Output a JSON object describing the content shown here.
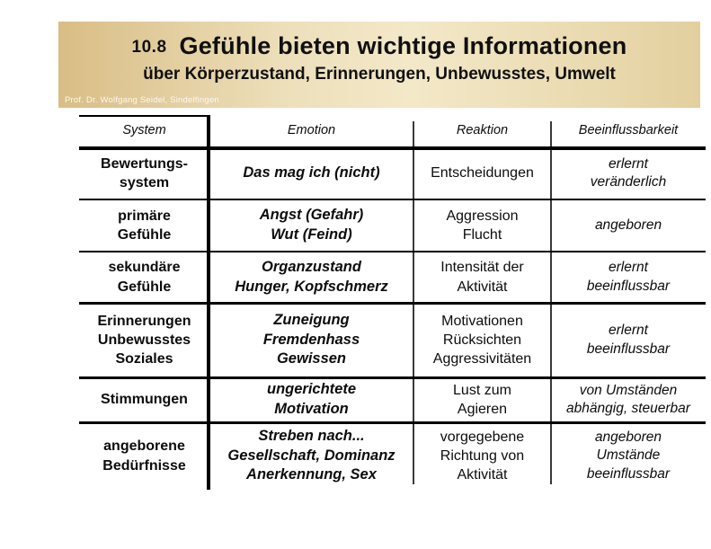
{
  "slide": {
    "number": "10.8",
    "title": "Gefühle bieten wichtige Informationen",
    "subtitle": "über Körperzustand, Erinnerungen, Unbewusstes, Umwelt",
    "credit": "Prof. Dr. Wolfgang Seidel, Sindelfingen"
  },
  "colors": {
    "banner_gold_dark": "#d9bd85",
    "banner_gold_light": "#f3e8c8",
    "text": "#0c0c0c",
    "credit_text": "#fbf9f2",
    "rule": "#000000"
  },
  "table": {
    "columns": [
      {
        "label": "System"
      },
      {
        "label": "Emotion"
      },
      {
        "label": "Reaktion"
      },
      {
        "label": "Beeinflussbarkeit"
      }
    ],
    "rows": [
      {
        "system": "Bewertungs-\nsystem",
        "emotion": "Das mag ich (nicht)",
        "reaktion": "Entscheidungen",
        "beeinflussbarkeit": "erlernt\nveränderlich"
      },
      {
        "system": "primäre\nGefühle",
        "emotion": "Angst (Gefahr)\nWut (Feind)",
        "reaktion": "Aggression\nFlucht",
        "beeinflussbarkeit": "angeboren"
      },
      {
        "system": "sekundäre\nGefühle",
        "emotion": "Organzustand\nHunger, Kopfschmerz",
        "reaktion": "Intensität der\nAktivität",
        "beeinflussbarkeit": "erlernt\nbeeinflussbar"
      },
      {
        "system": "Erinnerungen\nUnbewusstes\nSoziales",
        "emotion": "Zuneigung\nFremdenhass\nGewissen",
        "reaktion": "Motivationen\nRücksichten\nAggressivitäten",
        "beeinflussbarkeit": "erlernt\nbeeinflussbar"
      },
      {
        "system": "Stimmungen",
        "emotion": "ungerichtete\nMotivation",
        "reaktion": "Lust zum\nAgieren",
        "beeinflussbarkeit": "von Umständen\nabhängig, steuerbar"
      },
      {
        "system": "angeborene\nBedürfnisse",
        "emotion": "Streben nach...\nGesellschaft, Dominanz\nAnerkennung, Sex",
        "reaktion": "vorgegebene\nRichtung von\nAktivität",
        "beeinflussbarkeit": "angeboren\nUmstände\nbeeinflussbar"
      }
    ]
  }
}
